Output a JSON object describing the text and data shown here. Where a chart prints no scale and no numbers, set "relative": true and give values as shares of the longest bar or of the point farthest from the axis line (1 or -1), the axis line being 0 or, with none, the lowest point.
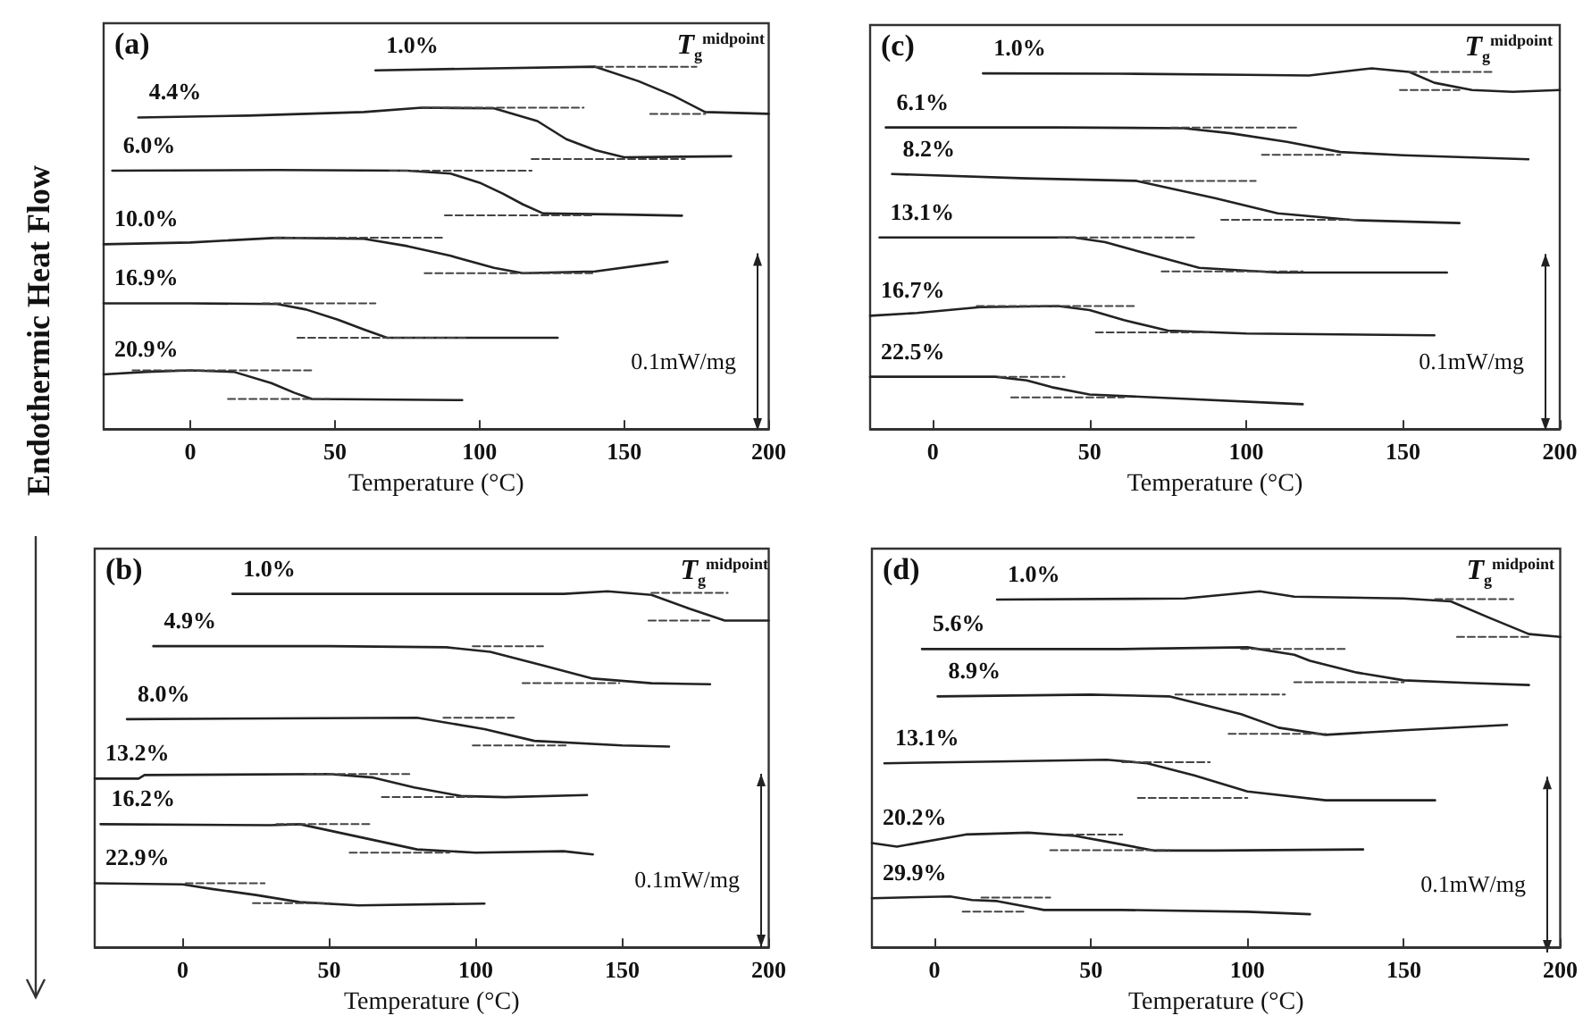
{
  "chart_data": [
    {
      "type": "line",
      "title": "(a)",
      "xlabel": "Temperature (°C)",
      "ylabel": "Endothermic Heat Flow",
      "xlim": [
        -30,
        200
      ],
      "xticks": [
        0,
        50,
        100,
        150,
        200
      ],
      "relative": true,
      "marker": "none",
      "annotations": [
        "T$_{g}$$^{midpoint}$",
        "0.1mW/mg"
      ],
      "series": [
        {
          "name": "1.0%",
          "color": "#222222",
          "line_style": "solid",
          "x": [
            64,
            100,
            140,
            155,
            167,
            178,
            200
          ],
          "values": [
            0.99,
            0.995,
            1.0,
            0.96,
            0.92,
            0.875,
            0.87
          ]
        },
        {
          "color": "#444444",
          "line_style": "dashed",
          "x": [
            140,
            175
          ],
          "values": [
            1.0,
            1.0
          ]
        },
        {
          "color": "#444444",
          "line_style": "dashed",
          "x": [
            159,
            178
          ],
          "values": [
            0.87,
            0.87
          ]
        },
        {
          "name": "4.4%",
          "color": "#222222",
          "line_style": "solid",
          "x": [
            -18,
            20,
            60,
            80,
            105,
            120,
            130,
            140,
            150,
            187
          ],
          "values": [
            0.86,
            0.865,
            0.875,
            0.887,
            0.885,
            0.85,
            0.8,
            0.77,
            0.75,
            0.753
          ]
        },
        {
          "color": "#444444",
          "line_style": "dashed",
          "x": [
            80,
            136
          ],
          "values": [
            0.887,
            0.887
          ]
        },
        {
          "color": "#444444",
          "line_style": "dashed",
          "x": [
            118,
            171
          ],
          "values": [
            0.745,
            0.745
          ]
        },
        {
          "name": "6.0%",
          "color": "#222222",
          "line_style": "solid",
          "x": [
            -27,
            30,
            75,
            90,
            100,
            108,
            115,
            122,
            150,
            170
          ],
          "values": [
            0.713,
            0.715,
            0.713,
            0.705,
            0.68,
            0.65,
            0.62,
            0.595,
            0.592,
            0.589
          ]
        },
        {
          "color": "#444444",
          "line_style": "dashed",
          "x": [
            69,
            118
          ],
          "values": [
            0.713,
            0.713
          ]
        },
        {
          "color": "#444444",
          "line_style": "dashed",
          "x": [
            88,
            139
          ],
          "values": [
            0.59,
            0.59
          ]
        },
        {
          "name": "10.0%",
          "color": "#222222",
          "line_style": "solid",
          "x": [
            -30,
            0,
            30,
            60,
            75,
            90,
            105,
            115,
            140,
            165
          ],
          "values": [
            0.51,
            0.515,
            0.528,
            0.525,
            0.505,
            0.478,
            0.445,
            0.43,
            0.435,
            0.462
          ]
        },
        {
          "color": "#444444",
          "line_style": "dashed",
          "x": [
            29,
            87
          ],
          "values": [
            0.528,
            0.528
          ]
        },
        {
          "color": "#444444",
          "line_style": "dashed",
          "x": [
            81,
            139
          ],
          "values": [
            0.43,
            0.43
          ]
        },
        {
          "name": "16.9%",
          "color": "#222222",
          "line_style": "solid",
          "x": [
            -30,
            0,
            30,
            40,
            51,
            60,
            68,
            127
          ],
          "values": [
            0.347,
            0.347,
            0.345,
            0.33,
            0.302,
            0.275,
            0.252,
            0.252
          ]
        },
        {
          "color": "#444444",
          "line_style": "dashed",
          "x": [
            25,
            64
          ],
          "values": [
            0.347,
            0.347
          ]
        },
        {
          "color": "#444444",
          "line_style": "dashed",
          "x": [
            37,
            96
          ],
          "values": [
            0.252,
            0.252
          ]
        },
        {
          "name": "20.9%",
          "color": "#222222",
          "line_style": "solid",
          "x": [
            -30,
            -15,
            0,
            15,
            28,
            36,
            42,
            94
          ],
          "values": [
            0.151,
            0.158,
            0.162,
            0.158,
            0.127,
            0.1,
            0.083,
            0.08
          ]
        },
        {
          "color": "#444444",
          "line_style": "dashed",
          "x": [
            -20,
            42
          ],
          "values": [
            0.162,
            0.162
          ]
        },
        {
          "color": "#444444",
          "line_style": "dashed",
          "x": [
            13,
            48
          ],
          "values": [
            0.083,
            0.083
          ]
        }
      ]
    },
    {
      "type": "line",
      "title": "(c)",
      "xlabel": "Temperature (°C)",
      "xlim": [
        -20,
        200
      ],
      "xticks": [
        0,
        50,
        100,
        150,
        200
      ],
      "relative": true,
      "marker": "none",
      "annotations": [
        "T$_{g}$$^{midpoint}$",
        "0.1mW/mg"
      ],
      "series": [
        {
          "name": "1.0%",
          "color": "#222222",
          "line_style": "solid",
          "x": [
            16,
            60,
            100,
            120,
            140,
            152,
            160,
            172,
            185,
            200
          ],
          "values": [
            0.986,
            0.985,
            0.982,
            0.98,
            1.0,
            0.99,
            0.96,
            0.94,
            0.935,
            0.94
          ]
        },
        {
          "color": "#444444",
          "line_style": "dashed",
          "x": [
            152,
            179
          ],
          "values": [
            0.99,
            0.99
          ]
        },
        {
          "color": "#444444",
          "line_style": "dashed",
          "x": [
            149,
            168
          ],
          "values": [
            0.94,
            0.94
          ]
        },
        {
          "name": "6.1%",
          "color": "#222222",
          "line_style": "solid",
          "x": [
            -15,
            40,
            80,
            95,
            113,
            130,
            150,
            190
          ],
          "values": [
            0.836,
            0.836,
            0.834,
            0.82,
            0.796,
            0.768,
            0.759,
            0.748
          ]
        },
        {
          "color": "#444444",
          "line_style": "dashed",
          "x": [
            76,
            116
          ],
          "values": [
            0.836,
            0.836
          ]
        },
        {
          "color": "#444444",
          "line_style": "dashed",
          "x": [
            105,
            130
          ],
          "values": [
            0.76,
            0.76
          ]
        },
        {
          "name": "8.2%",
          "color": "#222222",
          "line_style": "solid",
          "x": [
            -13,
            30,
            65,
            90,
            110,
            135,
            168
          ],
          "values": [
            0.707,
            0.695,
            0.688,
            0.64,
            0.598,
            0.579,
            0.571
          ]
        },
        {
          "color": "#444444",
          "line_style": "dashed",
          "x": [
            67,
            103
          ],
          "values": [
            0.688,
            0.688
          ]
        },
        {
          "color": "#444444",
          "line_style": "dashed",
          "x": [
            92,
            135
          ],
          "values": [
            0.58,
            0.58
          ]
        },
        {
          "name": "13.1%",
          "color": "#222222",
          "line_style": "solid",
          "x": [
            -17,
            45,
            55,
            70,
            85,
            110,
            164
          ],
          "values": [
            0.531,
            0.531,
            0.518,
            0.482,
            0.447,
            0.434,
            0.434
          ]
        },
        {
          "color": "#444444",
          "line_style": "dashed",
          "x": [
            40,
            84
          ],
          "values": [
            0.531,
            0.531
          ]
        },
        {
          "color": "#444444",
          "line_style": "dashed",
          "x": [
            73,
            118
          ],
          "values": [
            0.437,
            0.437
          ]
        },
        {
          "name": "16.7%",
          "color": "#222222",
          "line_style": "solid",
          "x": [
            -20,
            -5,
            15,
            40,
            50,
            61,
            75,
            100,
            160
          ],
          "values": [
            0.314,
            0.322,
            0.338,
            0.341,
            0.33,
            0.302,
            0.273,
            0.265,
            0.26
          ]
        },
        {
          "color": "#444444",
          "line_style": "dashed",
          "x": [
            14,
            65
          ],
          "values": [
            0.341,
            0.341
          ]
        },
        {
          "color": "#444444",
          "line_style": "dashed",
          "x": [
            52,
            88
          ],
          "values": [
            0.268,
            0.268
          ]
        },
        {
          "name": "22.5%",
          "color": "#222222",
          "line_style": "solid",
          "x": [
            -20,
            20,
            30,
            38,
            50,
            80,
            110,
            118
          ],
          "values": [
            0.145,
            0.145,
            0.135,
            0.116,
            0.096,
            0.084,
            0.072,
            0.069
          ]
        },
        {
          "color": "#444444",
          "line_style": "dashed",
          "x": [
            21,
            42
          ],
          "values": [
            0.145,
            0.145
          ]
        },
        {
          "color": "#444444",
          "line_style": "dashed",
          "x": [
            25,
            61
          ],
          "values": [
            0.088,
            0.088
          ]
        }
      ]
    },
    {
      "type": "line",
      "title": "(b)",
      "xlabel": "Temperature (°C)",
      "xlim": [
        -30,
        200
      ],
      "xticks": [
        0,
        50,
        100,
        150,
        200
      ],
      "relative": true,
      "marker": "none",
      "annotations": [
        "T$_{g}$$^{midpoint}$",
        "0.1mW/mg"
      ],
      "series": [
        {
          "name": "1.0%",
          "color": "#222222",
          "line_style": "solid",
          "x": [
            17,
            130,
            145,
            160,
            173,
            185,
            200
          ],
          "values": [
            0.993,
            0.993,
            1.0,
            0.99,
            0.951,
            0.918,
            0.918
          ]
        },
        {
          "color": "#444444",
          "line_style": "dashed",
          "x": [
            160,
            186
          ],
          "values": [
            0.996,
            0.996
          ]
        },
        {
          "color": "#444444",
          "line_style": "dashed",
          "x": [
            159,
            180
          ],
          "values": [
            0.918,
            0.918
          ]
        },
        {
          "name": "4.9%",
          "color": "#222222",
          "line_style": "solid",
          "x": [
            -10,
            50,
            90,
            105,
            123,
            140,
            160,
            180
          ],
          "values": [
            0.846,
            0.846,
            0.843,
            0.83,
            0.792,
            0.755,
            0.742,
            0.739
          ]
        },
        {
          "color": "#444444",
          "line_style": "dashed",
          "x": [
            99,
            123
          ],
          "values": [
            0.846,
            0.846
          ]
        },
        {
          "color": "#444444",
          "line_style": "dashed",
          "x": [
            116,
            149
          ],
          "values": [
            0.742,
            0.742
          ]
        },
        {
          "name": "8.0%",
          "color": "#222222",
          "line_style": "solid",
          "x": [
            -19,
            80,
            103,
            120,
            150,
            166
          ],
          "values": [
            0.641,
            0.645,
            0.613,
            0.58,
            0.567,
            0.564
          ]
        },
        {
          "color": "#444444",
          "line_style": "dashed",
          "x": [
            89,
            113
          ],
          "values": [
            0.645,
            0.645
          ]
        },
        {
          "color": "#444444",
          "line_style": "dashed",
          "x": [
            99,
            131
          ],
          "values": [
            0.567,
            0.567
          ]
        },
        {
          "name": "13.2%",
          "color": "#222222",
          "line_style": "solid",
          "x": [
            -30,
            -15,
            -13,
            50,
            65,
            79,
            95,
            110,
            138
          ],
          "values": [
            0.474,
            0.474,
            0.484,
            0.487,
            0.477,
            0.449,
            0.425,
            0.422,
            0.428
          ]
        },
        {
          "color": "#444444",
          "line_style": "dashed",
          "x": [
            42,
            78
          ],
          "values": [
            0.487,
            0.487
          ]
        },
        {
          "color": "#444444",
          "line_style": "dashed",
          "x": [
            68,
            99
          ],
          "values": [
            0.422,
            0.422
          ]
        },
        {
          "name": "16.2%",
          "color": "#222222",
          "line_style": "solid",
          "x": [
            -28,
            30,
            40,
            62,
            80,
            100,
            130,
            140
          ],
          "values": [
            0.346,
            0.343,
            0.346,
            0.307,
            0.275,
            0.266,
            0.27,
            0.261
          ]
        },
        {
          "color": "#444444",
          "line_style": "dashed",
          "x": [
            32,
            64
          ],
          "values": [
            0.346,
            0.346
          ]
        },
        {
          "color": "#444444",
          "line_style": "dashed",
          "x": [
            57,
            91
          ],
          "values": [
            0.266,
            0.266
          ]
        },
        {
          "name": "22.9%",
          "color": "#222222",
          "line_style": "solid",
          "x": [
            -30,
            0,
            10,
            25,
            40,
            60,
            103
          ],
          "values": [
            0.18,
            0.177,
            0.164,
            0.147,
            0.127,
            0.118,
            0.123
          ]
        },
        {
          "color": "#444444",
          "line_style": "dashed",
          "x": [
            1,
            28
          ],
          "values": [
            0.18,
            0.18
          ]
        },
        {
          "color": "#444444",
          "line_style": "dashed",
          "x": [
            24,
            50
          ],
          "values": [
            0.124,
            0.124
          ]
        }
      ]
    },
    {
      "type": "line",
      "title": "(d)",
      "xlabel": "Temperature (°C)",
      "xlim": [
        -20,
        200
      ],
      "xticks": [
        0,
        50,
        100,
        150,
        200
      ],
      "relative": true,
      "marker": "none",
      "annotations": [
        "T$_{g}$$^{midpoint}$",
        "0.1mW/mg"
      ],
      "series": [
        {
          "name": "1.0%",
          "color": "#222222",
          "line_style": "solid",
          "x": [
            20,
            80,
            104,
            115,
            150,
            165,
            177,
            190,
            200
          ],
          "values": [
            0.977,
            0.98,
            1.0,
            0.985,
            0.98,
            0.972,
            0.927,
            0.88,
            0.872
          ]
        },
        {
          "color": "#444444",
          "line_style": "dashed",
          "x": [
            160,
            185
          ],
          "values": [
            0.978,
            0.978
          ]
        },
        {
          "color": "#444444",
          "line_style": "dashed",
          "x": [
            167,
            190
          ],
          "values": [
            0.872,
            0.872
          ]
        },
        {
          "name": "5.6%",
          "color": "#222222",
          "line_style": "solid",
          "x": [
            -4,
            60,
            100,
            115,
            120,
            135,
            150,
            170,
            190
          ],
          "values": [
            0.838,
            0.838,
            0.843,
            0.822,
            0.805,
            0.772,
            0.75,
            0.743,
            0.737
          ]
        },
        {
          "color": "#444444",
          "line_style": "dashed",
          "x": [
            98,
            132
          ],
          "values": [
            0.838,
            0.838
          ]
        },
        {
          "color": "#444444",
          "line_style": "dashed",
          "x": [
            115,
            150
          ],
          "values": [
            0.745,
            0.745
          ]
        },
        {
          "name": "8.9%",
          "color": "#222222",
          "line_style": "solid",
          "x": [
            1,
            50,
            75,
            98,
            110,
            125,
            150,
            183
          ],
          "values": [
            0.705,
            0.71,
            0.705,
            0.655,
            0.617,
            0.597,
            0.61,
            0.625
          ]
        },
        {
          "color": "#444444",
          "line_style": "dashed",
          "x": [
            77,
            112
          ],
          "values": [
            0.71,
            0.71
          ]
        },
        {
          "color": "#444444",
          "line_style": "dashed",
          "x": [
            94,
            125
          ],
          "values": [
            0.6,
            0.6
          ]
        },
        {
          "name": "13.1%",
          "color": "#222222",
          "line_style": "solid",
          "x": [
            -16,
            20,
            55,
            68,
            83,
            100,
            125,
            160
          ],
          "values": [
            0.517,
            0.522,
            0.527,
            0.517,
            0.483,
            0.438,
            0.413,
            0.413
          ]
        },
        {
          "color": "#444444",
          "line_style": "dashed",
          "x": [
            60,
            88
          ],
          "values": [
            0.52,
            0.52
          ]
        },
        {
          "color": "#444444",
          "line_style": "dashed",
          "x": [
            65,
            100
          ],
          "values": [
            0.42,
            0.42
          ]
        },
        {
          "name": "20.2%",
          "color": "#222222",
          "line_style": "solid",
          "x": [
            -20,
            -12,
            10,
            30,
            45,
            55,
            70,
            90,
            137
          ],
          "values": [
            0.293,
            0.283,
            0.317,
            0.322,
            0.313,
            0.297,
            0.272,
            0.272,
            0.275
          ]
        },
        {
          "color": "#444444",
          "line_style": "dashed",
          "x": [
            42,
            60
          ],
          "values": [
            0.317,
            0.317
          ]
        },
        {
          "color": "#444444",
          "line_style": "dashed",
          "x": [
            37,
            75
          ],
          "values": [
            0.273,
            0.273
          ]
        },
        {
          "name": "29.9%",
          "color": "#222222",
          "line_style": "solid",
          "x": [
            -20,
            5,
            12,
            20,
            35,
            60,
            100,
            120
          ],
          "values": [
            0.138,
            0.143,
            0.133,
            0.13,
            0.105,
            0.105,
            0.1,
            0.093
          ]
        },
        {
          "color": "#444444",
          "line_style": "dashed",
          "x": [
            15,
            37
          ],
          "values": [
            0.14,
            0.14
          ]
        },
        {
          "color": "#444444",
          "line_style": "dashed",
          "x": [
            9,
            29
          ],
          "values": [
            0.1,
            0.1
          ]
        }
      ]
    }
  ]
}
